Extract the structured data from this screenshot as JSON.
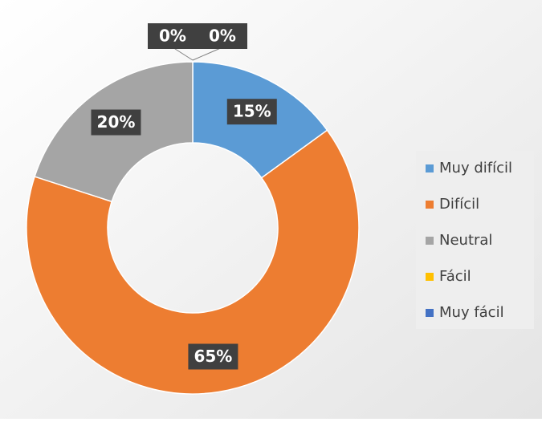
{
  "chart_data": {
    "type": "donut",
    "categories": [
      "Muy difícil",
      "Difícil",
      "Neutral",
      "Fácil",
      "Muy fácil"
    ],
    "values": [
      15,
      65,
      20,
      0,
      0
    ],
    "value_labels": [
      "15%",
      "65%",
      "20%",
      "0%",
      "0%"
    ],
    "colors": [
      "#5b9bd5",
      "#ed7d31",
      "#a5a5a5",
      "#ffc000",
      "#4472c4"
    ],
    "legend": "right"
  }
}
